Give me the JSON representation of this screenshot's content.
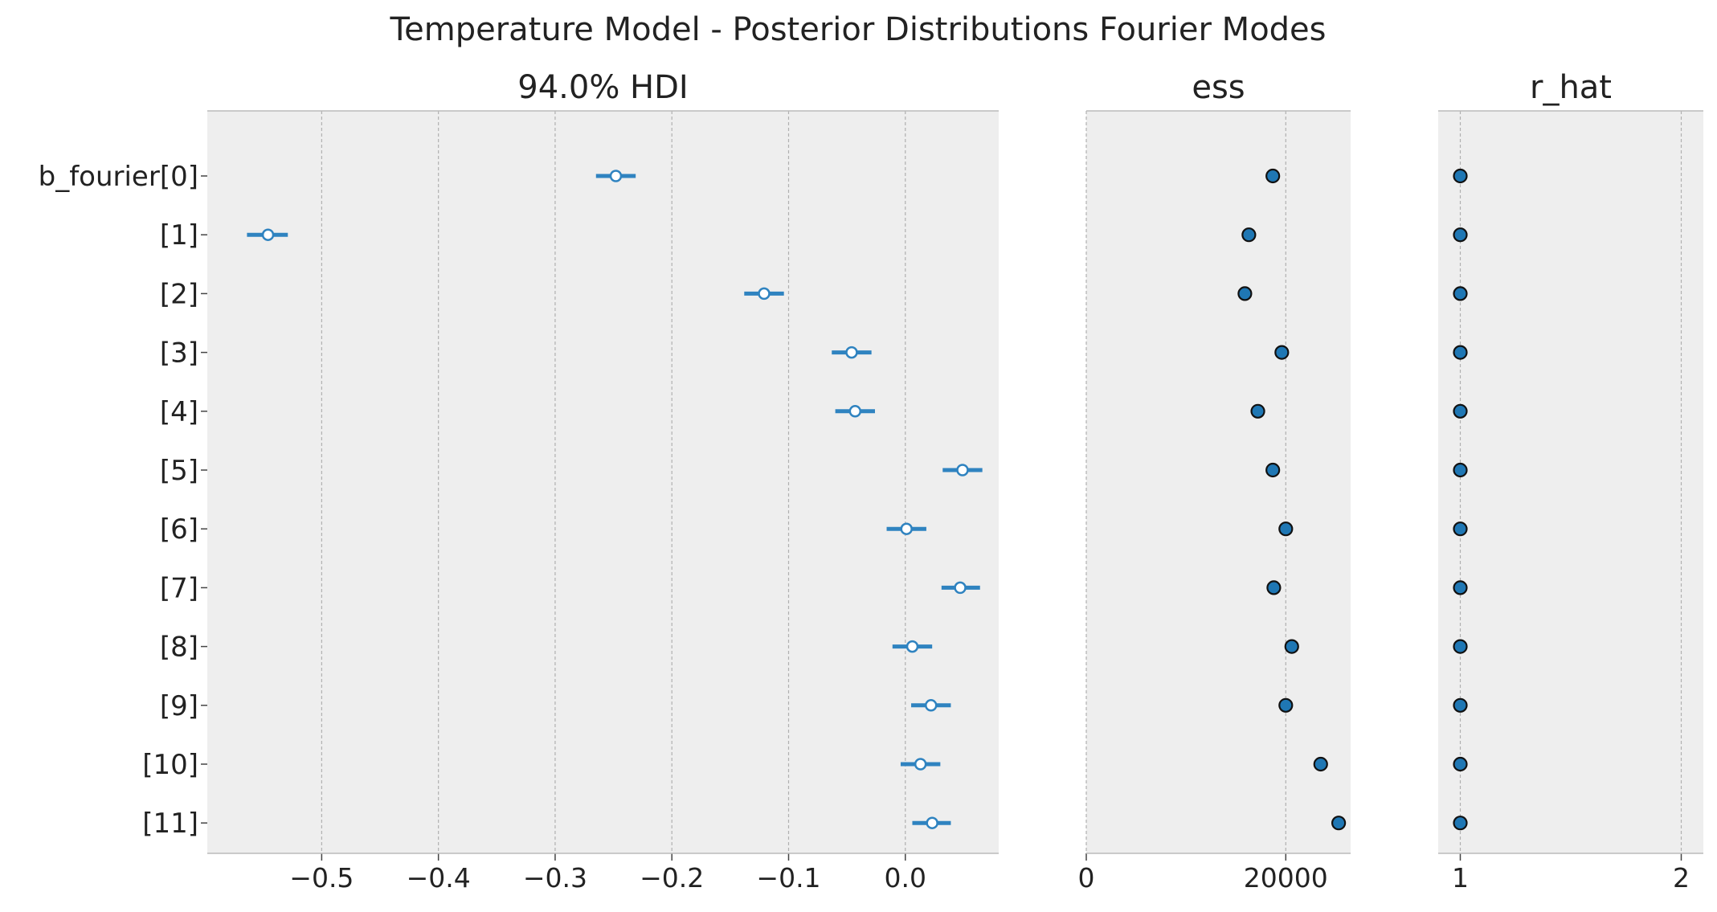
{
  "chart_data": {
    "type": "forest",
    "title": "Temperature Model - Posterior Distributions Fourier Modes",
    "labels": [
      "b_fourier[0]",
      "[1]",
      "[2]",
      "[3]",
      "[4]",
      "[5]",
      "[6]",
      "[7]",
      "[8]",
      "[9]",
      "[10]",
      "[11]"
    ],
    "grid": true,
    "colors": {
      "panel_bg": "#eeeeee",
      "hdi": "#2f83c0",
      "marker": "#1f77b4",
      "grid": "#b0b0b0"
    },
    "panels": [
      {
        "title": "94.0% HDI",
        "xlim": [
          -0.598,
          0.08
        ],
        "ticks": [
          -0.5,
          -0.4,
          -0.3,
          -0.2,
          -0.1,
          0.0
        ],
        "tick_labels": [
          "−0.5",
          "−0.4",
          "−0.3",
          "−0.2",
          "−0.1",
          "0.0"
        ],
        "series": [
          {
            "index": 0,
            "mean": -0.248,
            "hdi_low": -0.265,
            "hdi_high": -0.231
          },
          {
            "index": 1,
            "mean": -0.546,
            "hdi_low": -0.564,
            "hdi_high": -0.529
          },
          {
            "index": 2,
            "mean": -0.121,
            "hdi_low": -0.138,
            "hdi_high": -0.104
          },
          {
            "index": 3,
            "mean": -0.046,
            "hdi_low": -0.063,
            "hdi_high": -0.029
          },
          {
            "index": 4,
            "mean": -0.043,
            "hdi_low": -0.06,
            "hdi_high": -0.026
          },
          {
            "index": 5,
            "mean": 0.049,
            "hdi_low": 0.032,
            "hdi_high": 0.066
          },
          {
            "index": 6,
            "mean": 0.001,
            "hdi_low": -0.016,
            "hdi_high": 0.018
          },
          {
            "index": 7,
            "mean": 0.047,
            "hdi_low": 0.031,
            "hdi_high": 0.064
          },
          {
            "index": 8,
            "mean": 0.006,
            "hdi_low": -0.011,
            "hdi_high": 0.023
          },
          {
            "index": 9,
            "mean": 0.022,
            "hdi_low": 0.005,
            "hdi_high": 0.039
          },
          {
            "index": 10,
            "mean": 0.013,
            "hdi_low": -0.004,
            "hdi_high": 0.03
          },
          {
            "index": 11,
            "mean": 0.023,
            "hdi_low": 0.006,
            "hdi_high": 0.039
          }
        ]
      },
      {
        "title": "ess",
        "xlim": [
          0,
          26500
        ],
        "ticks": [
          0,
          20000
        ],
        "tick_labels": [
          "0",
          "20000"
        ],
        "values": [
          18700,
          16300,
          15900,
          19600,
          17200,
          18700,
          20000,
          18800,
          20600,
          20000,
          23500,
          25300
        ]
      },
      {
        "title": "r_hat",
        "xlim": [
          0.9,
          2.1
        ],
        "ticks": [
          1,
          2
        ],
        "tick_labels": [
          "1",
          "2"
        ],
        "values": [
          1.0,
          1.0,
          1.0,
          1.0,
          1.0,
          1.0,
          1.0,
          1.0,
          1.0,
          1.0,
          1.0,
          1.0
        ]
      }
    ]
  }
}
